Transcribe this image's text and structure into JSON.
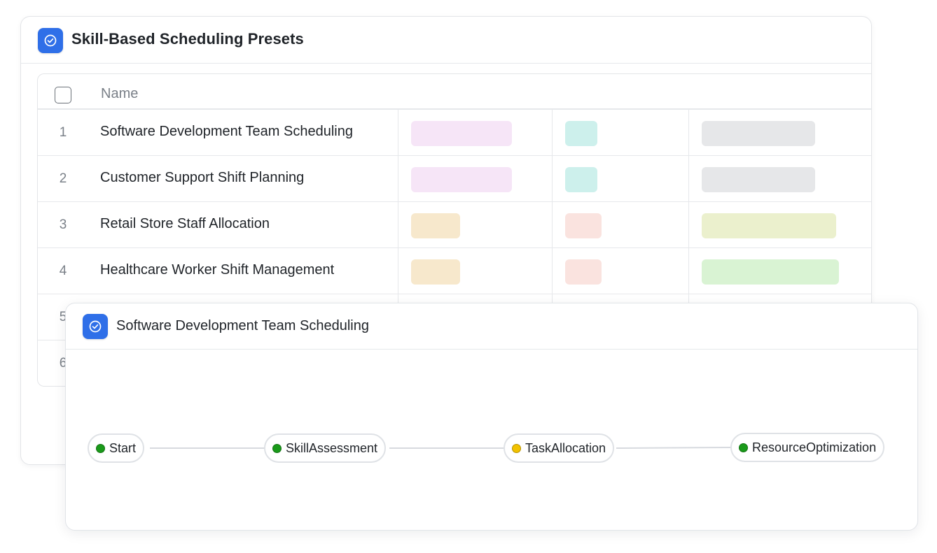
{
  "presets_panel": {
    "title": "Skill-Based Scheduling Presets",
    "icon": "check-circle-icon",
    "table": {
      "columns": [
        "Name"
      ],
      "rows": [
        {
          "index": "1",
          "name": "Software Development Team Scheduling",
          "tags": [
            {
              "color": "#f6e5f7"
            },
            {
              "color": "#cdf0ec"
            },
            {
              "color": "#e6e7e9"
            }
          ]
        },
        {
          "index": "2",
          "name": "Customer Support Shift Planning",
          "tags": [
            {
              "color": "#f6e5f7"
            },
            {
              "color": "#cdf0ec"
            },
            {
              "color": "#e6e7e9"
            }
          ]
        },
        {
          "index": "3",
          "name": "Retail Store Staff Allocation",
          "tags": [
            {
              "color": "#f7e8cc"
            },
            {
              "color": "#fae3df"
            },
            {
              "color": "#ebf0cd"
            }
          ]
        },
        {
          "index": "4",
          "name": "Healthcare Worker Shift Management",
          "tags": [
            {
              "color": "#f7e8cc"
            },
            {
              "color": "#fae3df"
            },
            {
              "color": "#d9f3d3"
            }
          ]
        },
        {
          "index": "5",
          "name": "",
          "tags": []
        },
        {
          "index": "6",
          "name": "",
          "tags": []
        }
      ]
    }
  },
  "flow_panel": {
    "title": "Software Development Team Scheduling",
    "icon": "check-circle-icon",
    "nodes": [
      {
        "label": "Start",
        "status_color": "#1a9a1a"
      },
      {
        "label": "SkillAssessment",
        "status_color": "#1a9a1a"
      },
      {
        "label": "TaskAllocation",
        "status_color": "#f2c200"
      },
      {
        "label": "ResourceOptimization",
        "status_color": "#1a9a1a"
      }
    ]
  },
  "colors": {
    "accent": "#2f6fe8",
    "border": "#e3e5e8",
    "status_ok": "#1a9a1a",
    "status_pending": "#f2c200"
  }
}
